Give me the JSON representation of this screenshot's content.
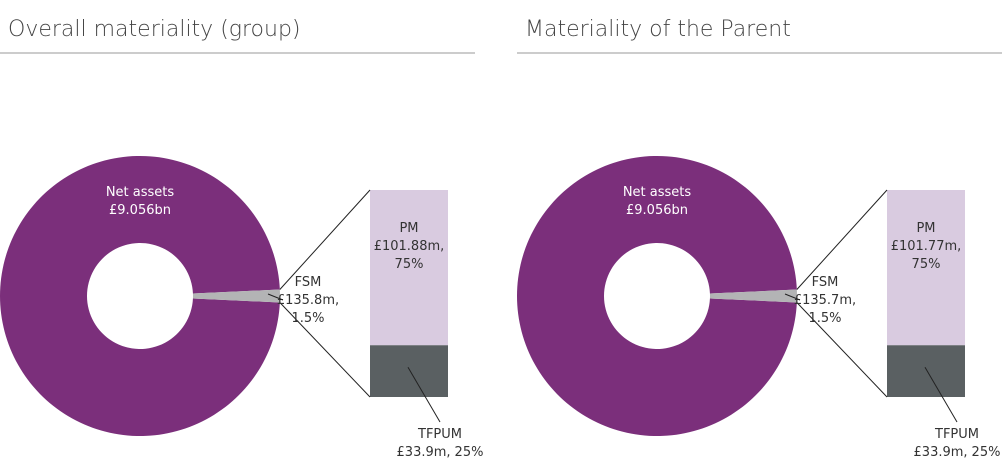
{
  "chart_data": [
    {
      "type": "bar-of-pie",
      "title": "Overall materiality (group)",
      "pie": {
        "categories": [
          "Net assets",
          "FSM"
        ],
        "values": [
          9056,
          135.8
        ],
        "value_labels": [
          "£9.056bn",
          "£135.8m,"
        ],
        "colors": [
          "#7b2f7b",
          "#b3b4b5"
        ]
      },
      "fsm_share": {
        "value": 1.5,
        "label": "1.5%"
      },
      "bar": {
        "categories": [
          "PM",
          "TFPUM"
        ],
        "values": [
          101.88,
          33.9
        ],
        "value_labels": [
          "£101.88m,",
          "£33.9m,"
        ],
        "shares": [
          75,
          25
        ],
        "share_labels": [
          "75%",
          "25%"
        ],
        "colors": [
          "#d9cbe0",
          "#5a6062"
        ]
      }
    },
    {
      "type": "bar-of-pie",
      "title": "Materiality of the Parent",
      "pie": {
        "categories": [
          "Net assets",
          "FSM"
        ],
        "values": [
          9056,
          135.7
        ],
        "value_labels": [
          "£9.056bn",
          "£135.7m,"
        ],
        "colors": [
          "#7b2f7b",
          "#b3b4b5"
        ]
      },
      "fsm_share": {
        "value": 1.5,
        "label": "1.5%"
      },
      "bar": {
        "categories": [
          "PM",
          "TFPUM"
        ],
        "values": [
          101.77,
          33.9
        ],
        "value_labels": [
          "£101.77m,",
          "£33.9m,"
        ],
        "shares": [
          75,
          25
        ],
        "share_labels": [
          "75%",
          "25%"
        ],
        "colors": [
          "#d9cbe0",
          "#5a6062"
        ]
      }
    }
  ]
}
